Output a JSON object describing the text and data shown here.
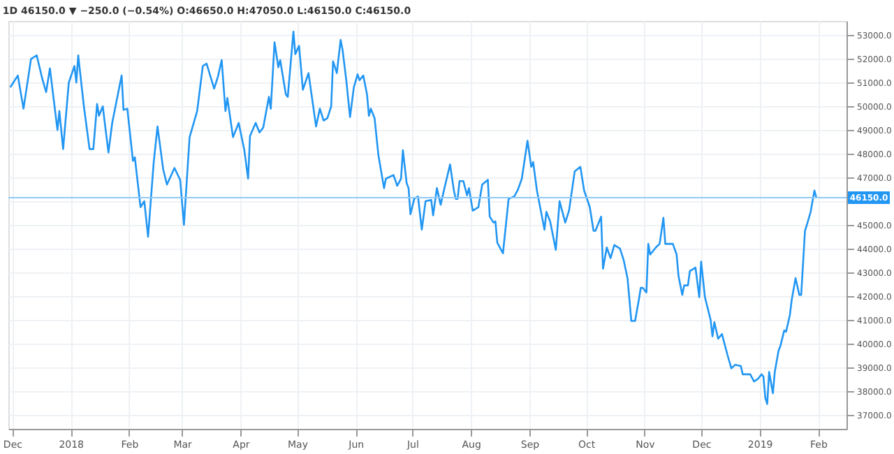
{
  "chart_data": {
    "type": "line",
    "title": "1D 46150.0 ▼ −250.0 (−0.54%) O:46650.0 H:47050.0 L:46150.0 C:46150.0",
    "x": [
      "2017-11-30",
      "2017-12-04",
      "2017-12-07",
      "2017-12-11",
      "2017-12-14",
      "2017-12-17",
      "2017-12-19",
      "2017-12-21",
      "2017-12-25",
      "2017-12-26",
      "2017-12-28",
      "2017-12-31",
      "2018-01-03",
      "2018-01-04",
      "2018-01-05",
      "2018-01-08",
      "2018-01-11",
      "2018-01-13",
      "2018-01-15",
      "2018-01-16",
      "2018-01-18",
      "2018-01-21",
      "2018-01-23",
      "2018-01-28",
      "2018-01-29",
      "2018-01-31",
      "2018-02-03",
      "2018-02-04",
      "2018-02-07",
      "2018-02-09",
      "2018-02-11",
      "2018-02-14",
      "2018-02-16",
      "2018-02-19",
      "2018-02-21",
      "2018-02-25",
      "2018-02-28",
      "2018-03-02",
      "2018-03-05",
      "2018-03-09",
      "2018-03-12",
      "2018-03-14",
      "2018-03-18",
      "2018-03-20",
      "2018-03-22",
      "2018-03-24",
      "2018-03-25",
      "2018-03-28",
      "2018-03-31",
      "2018-04-03",
      "2018-04-05",
      "2018-04-06",
      "2018-04-09",
      "2018-04-11",
      "2018-04-13",
      "2018-04-16",
      "2018-04-17",
      "2018-04-19",
      "2018-04-21",
      "2018-04-22",
      "2018-04-25",
      "2018-04-26",
      "2018-04-29",
      "2018-04-30",
      "2018-05-02",
      "2018-05-04",
      "2018-05-07",
      "2018-05-11",
      "2018-05-13",
      "2018-05-15",
      "2018-05-17",
      "2018-05-19",
      "2018-05-20",
      "2018-05-22",
      "2018-05-24",
      "2018-05-25",
      "2018-05-27",
      "2018-05-29",
      "2018-05-31",
      "2018-06-02",
      "2018-06-03",
      "2018-06-05",
      "2018-06-07",
      "2018-06-08",
      "2018-06-09",
      "2018-06-11",
      "2018-06-13",
      "2018-06-16",
      "2018-06-17",
      "2018-06-21",
      "2018-06-23",
      "2018-06-25",
      "2018-06-26",
      "2018-06-28",
      "2018-06-29",
      "2018-06-30",
      "2018-07-02",
      "2018-07-04",
      "2018-07-06",
      "2018-07-08",
      "2018-07-11",
      "2018-07-12",
      "2018-07-14",
      "2018-07-16",
      "2018-07-18",
      "2018-07-21",
      "2018-07-23",
      "2018-07-24",
      "2018-07-25",
      "2018-07-26",
      "2018-07-28",
      "2018-07-30",
      "2018-07-31",
      "2018-08-02",
      "2018-08-05",
      "2018-08-07",
      "2018-08-10",
      "2018-08-11",
      "2018-08-13",
      "2018-08-14",
      "2018-08-15",
      "2018-08-18",
      "2018-08-21",
      "2018-08-24",
      "2018-08-26",
      "2018-08-28",
      "2018-08-31",
      "2018-09-02",
      "2018-09-03",
      "2018-09-05",
      "2018-09-09",
      "2018-09-10",
      "2018-09-12",
      "2018-09-15",
      "2018-09-17",
      "2018-09-20",
      "2018-09-22",
      "2018-09-25",
      "2018-09-28",
      "2018-09-30",
      "2018-10-03",
      "2018-10-05",
      "2018-10-06",
      "2018-10-09",
      "2018-10-10",
      "2018-10-12",
      "2018-10-14",
      "2018-10-16",
      "2018-10-19",
      "2018-10-21",
      "2018-10-23",
      "2018-10-25",
      "2018-10-27",
      "2018-10-29",
      "2018-10-30",
      "2018-10-31",
      "2018-11-02",
      "2018-11-03",
      "2018-11-04",
      "2018-11-07",
      "2018-11-09",
      "2018-11-11",
      "2018-11-12",
      "2018-11-16",
      "2018-11-18",
      "2018-11-19",
      "2018-11-21",
      "2018-11-22",
      "2018-11-24",
      "2018-11-25",
      "2018-11-28",
      "2018-11-30",
      "2018-12-01",
      "2018-12-03",
      "2018-12-06",
      "2018-12-07",
      "2018-12-08",
      "2018-12-10",
      "2018-12-12",
      "2018-12-15",
      "2018-12-17",
      "2018-12-19",
      "2018-12-22",
      "2018-12-23",
      "2018-12-27",
      "2018-12-29",
      "2018-12-31",
      "2019-01-02",
      "2019-01-03",
      "2019-01-04",
      "2019-01-05",
      "2019-01-06",
      "2019-01-08",
      "2019-01-09",
      "2019-01-11",
      "2019-01-12",
      "2019-01-14",
      "2019-01-15",
      "2019-01-17",
      "2019-01-18",
      "2019-01-20",
      "2019-01-22",
      "2019-01-23",
      "2019-01-25",
      "2019-01-26",
      "2019-01-28",
      "2019-01-30",
      "2019-01-31"
    ],
    "series": [
      {
        "color": "#2196f3",
        "values": [
          50800,
          51300,
          49900,
          52000,
          52150,
          51150,
          50600,
          51600,
          49000,
          49800,
          48200,
          51000,
          51700,
          51000,
          52150,
          50000,
          48200,
          48200,
          50100,
          49600,
          50000,
          48050,
          49300,
          51300,
          49850,
          49900,
          47700,
          47850,
          45750,
          46000,
          44500,
          47650,
          49150,
          47350,
          46700,
          47400,
          46900,
          45000,
          48700,
          49800,
          51700,
          51800,
          50750,
          51250,
          51950,
          49800,
          50350,
          48700,
          49300,
          48150,
          46950,
          48750,
          49300,
          48900,
          49100,
          50400,
          49900,
          52700,
          51650,
          51950,
          50500,
          50400,
          53150,
          52200,
          52550,
          50700,
          51400,
          49150,
          49900,
          49400,
          49500,
          50000,
          51900,
          51400,
          52800,
          52400,
          51100,
          49550,
          50800,
          51350,
          51100,
          51300,
          50500,
          49600,
          49900,
          49500,
          47950,
          46550,
          46950,
          47100,
          46650,
          46950,
          48150,
          46750,
          46550,
          45450,
          46100,
          46200,
          44800,
          46000,
          46050,
          45400,
          46550,
          45850,
          46550,
          47550,
          46450,
          46100,
          46100,
          46850,
          46850,
          46250,
          46550,
          45600,
          45750,
          46700,
          46900,
          45350,
          45100,
          45150,
          44250,
          43800,
          46100,
          46200,
          46500,
          46950,
          48550,
          47450,
          47650,
          46450,
          44800,
          45550,
          45150,
          43950,
          46000,
          45100,
          45600,
          47250,
          47450,
          46450,
          45750,
          44750,
          44750,
          45350,
          43150,
          44050,
          43600,
          44150,
          44000,
          43500,
          42750,
          40950,
          40950,
          41850,
          42350,
          42350,
          42150,
          44200,
          43750,
          44050,
          44200,
          45300,
          44200,
          44200,
          43750,
          42850,
          42050,
          42450,
          42450,
          43050,
          43200,
          41950,
          43450,
          41950,
          41000,
          40300,
          40900,
          40200,
          40400,
          39500,
          38950,
          39100,
          39050,
          38700,
          38700,
          38400,
          38500,
          38700,
          38600,
          37700,
          37450,
          38800,
          37900,
          38800,
          39700,
          39900,
          40550,
          40500,
          41200,
          41850,
          42750,
          42050,
          42050,
          44750,
          45000,
          45550,
          46450,
          46150
        ]
      }
    ],
    "xlim": [
      "2017-11-29",
      "2019-02-16"
    ],
    "xticks": [
      {
        "value": "2017-12-01",
        "label": "Dec"
      },
      {
        "value": "2018-01-01",
        "label": "2018"
      },
      {
        "value": "2018-02-01",
        "label": "Feb"
      },
      {
        "value": "2018-03-01",
        "label": "Mar"
      },
      {
        "value": "2018-04-01",
        "label": "Apr"
      },
      {
        "value": "2018-05-01",
        "label": "May"
      },
      {
        "value": "2018-06-01",
        "label": "Jun"
      },
      {
        "value": "2018-07-01",
        "label": "Jul"
      },
      {
        "value": "2018-08-01",
        "label": "Aug"
      },
      {
        "value": "2018-09-01",
        "label": "Sep"
      },
      {
        "value": "2018-10-01",
        "label": "Oct"
      },
      {
        "value": "2018-11-01",
        "label": "Nov"
      },
      {
        "value": "2018-12-01",
        "label": "Dec"
      },
      {
        "value": "2019-01-01",
        "label": "2019"
      },
      {
        "value": "2019-02-01",
        "label": "Feb"
      }
    ],
    "ylim": [
      36400,
      53600
    ],
    "yticks": [
      {
        "value": 37000,
        "label": "37000.0"
      },
      {
        "value": 38000,
        "label": "38000.0"
      },
      {
        "value": 39000,
        "label": "39000.0"
      },
      {
        "value": 40000,
        "label": "40000.0"
      },
      {
        "value": 41000,
        "label": "41000.0"
      },
      {
        "value": 42000,
        "label": "42000.0"
      },
      {
        "value": 43000,
        "label": "43000.0"
      },
      {
        "value": 44000,
        "label": "44000.0"
      },
      {
        "value": 45000,
        "label": "45000.0"
      },
      {
        "value": 46000,
        "label": null
      },
      {
        "value": 47000,
        "label": "47000.0"
      },
      {
        "value": 48000,
        "label": "48000.0"
      },
      {
        "value": 49000,
        "label": "49000.0"
      },
      {
        "value": 50000,
        "label": "50000.0"
      },
      {
        "value": 51000,
        "label": "51000.0"
      },
      {
        "value": 52000,
        "label": "52000.0"
      },
      {
        "value": 53000,
        "label": "53000.0"
      }
    ],
    "ref_lines": [
      {
        "axis": "y",
        "value": 46150,
        "label": "46150.0",
        "color": "#90caf9"
      }
    ],
    "grid": true,
    "marker": "none",
    "line_style": "solid"
  }
}
